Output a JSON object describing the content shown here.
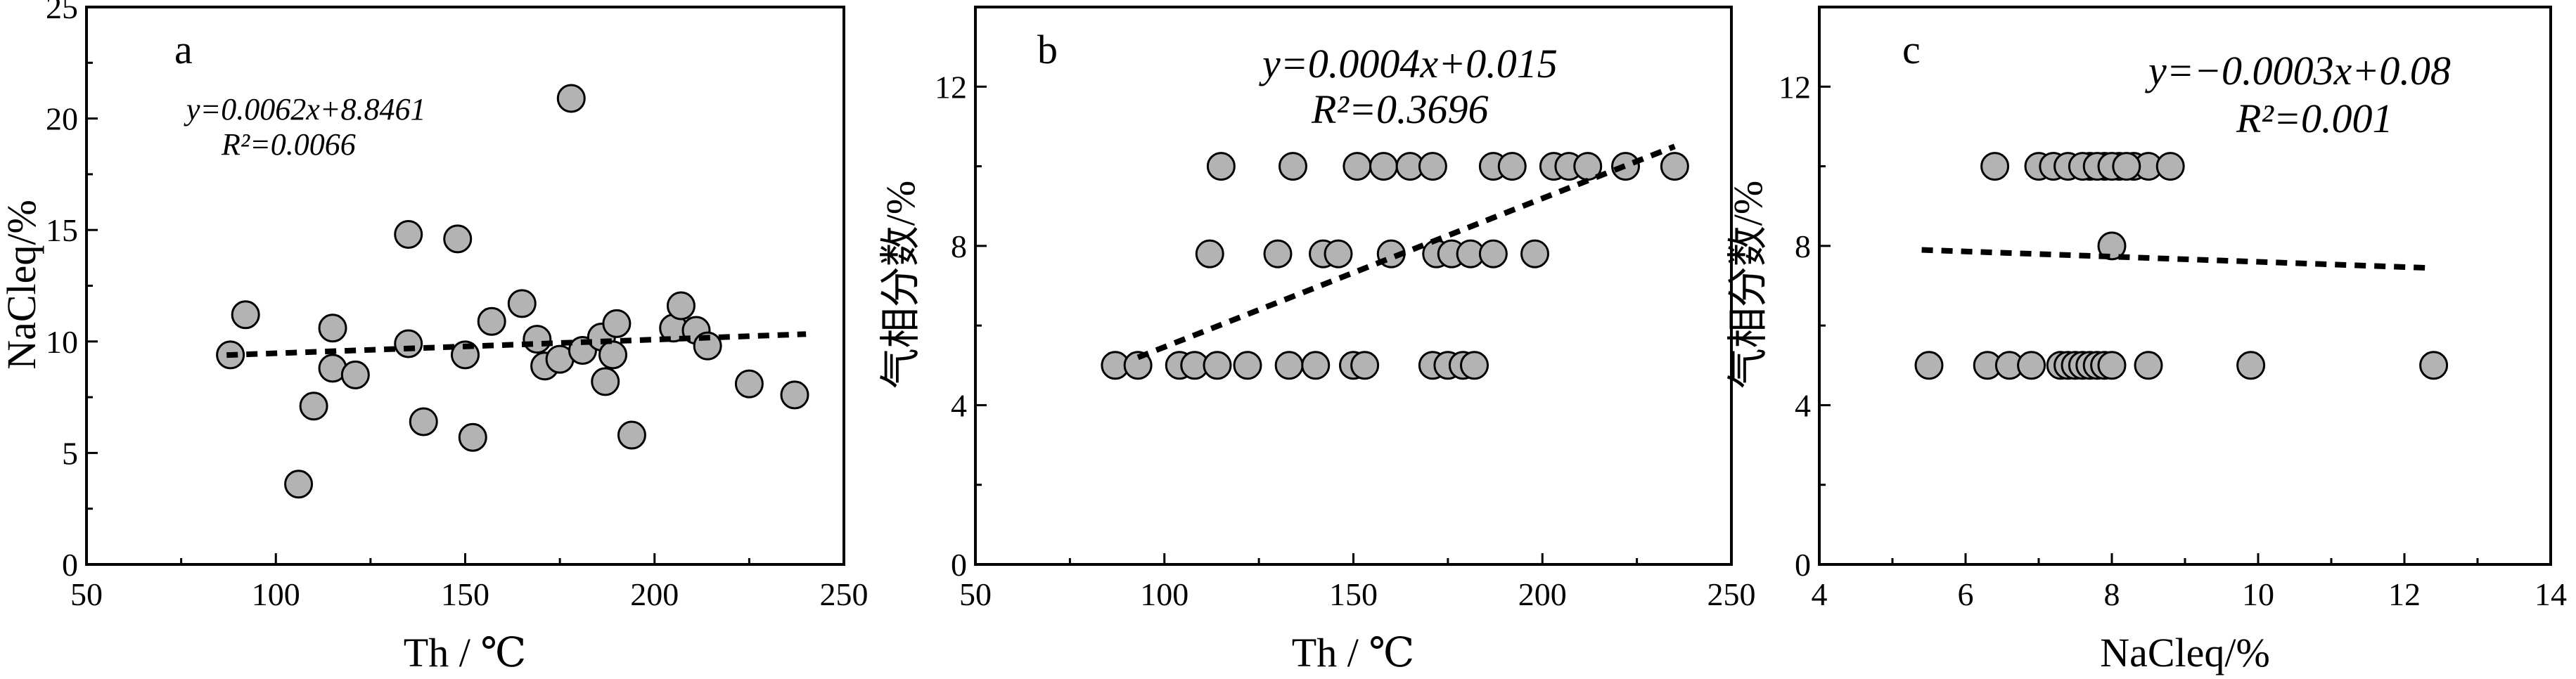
{
  "figure": {
    "panels": [
      {
        "letter": "a",
        "xlabel": "Th / ℃",
        "ylabel": "NaCleq/%",
        "equation": "y=0.0062x+8.8461",
        "r2_label": "R²=0.0066"
      },
      {
        "letter": "b",
        "xlabel": "Th / ℃",
        "ylabel": "气相分数/%",
        "equation": "y=0.0004x+0.015",
        "r2_label": "R²=0.3696"
      },
      {
        "letter": "c",
        "xlabel": "NaCleq/%",
        "ylabel": "气相分数/%",
        "equation": "y=−0.0003x+0.08",
        "r2_label": "R²=0.001"
      }
    ]
  },
  "chart_data": [
    {
      "type": "scatter",
      "title": "",
      "panel": "a",
      "xlabel": "Th / ℃",
      "ylabel": "NaCleq/%",
      "xlim": [
        50,
        250
      ],
      "ylim": [
        0,
        25
      ],
      "xticks": [
        50,
        100,
        150,
        200,
        250
      ],
      "yticks": [
        0,
        5,
        10,
        15,
        20,
        25
      ],
      "marker_color": "#b3b3b3",
      "series": [
        {
          "x": [
            88,
            92,
            106,
            110,
            115,
            115,
            121,
            135,
            135,
            139,
            148,
            150,
            152,
            157,
            165,
            169,
            171,
            175,
            178,
            181,
            186,
            187,
            189,
            190,
            194,
            205,
            207,
            211,
            214,
            225,
            237
          ],
          "y": [
            9.4,
            11.2,
            3.6,
            7.1,
            10.6,
            8.8,
            8.5,
            14.8,
            9.9,
            6.4,
            14.6,
            9.4,
            5.7,
            10.9,
            11.7,
            10.1,
            8.9,
            9.2,
            20.9,
            9.6,
            10.2,
            8.2,
            9.4,
            10.8,
            5.8,
            10.6,
            11.6,
            10.5,
            9.8,
            8.1,
            7.6
          ]
        }
      ],
      "trendline": {
        "x": [
          87,
          240
        ],
        "y": [
          9.39,
          10.33
        ]
      }
    },
    {
      "type": "scatter",
      "title": "",
      "panel": "b",
      "xlabel": "Th / ℃",
      "ylabel": "气相分数/%",
      "xlim": [
        50,
        250
      ],
      "ylim": [
        0,
        14
      ],
      "xticks": [
        50,
        100,
        150,
        200,
        250
      ],
      "yticks": [
        0,
        4,
        8,
        12
      ],
      "marker_color": "#b3b3b3",
      "series": [
        {
          "x": [
            87,
            93,
            104,
            108,
            114,
            122,
            133,
            140,
            150,
            153,
            171,
            175,
            179,
            182,
            112,
            130,
            142,
            146,
            160,
            172,
            176,
            181,
            187,
            198,
            115,
            134,
            151,
            158,
            165,
            171,
            187,
            192,
            203,
            207,
            212,
            222,
            235
          ],
          "y": [
            5,
            5,
            5,
            5,
            5,
            5,
            5,
            5,
            5,
            5,
            5,
            5,
            5,
            5,
            7.8,
            7.8,
            7.8,
            7.8,
            7.8,
            7.8,
            7.8,
            7.8,
            7.8,
            7.8,
            10,
            10,
            10,
            10,
            10,
            10,
            10,
            10,
            10,
            10,
            10,
            10,
            10
          ]
        }
      ],
      "trendline": {
        "x": [
          93,
          235
        ],
        "y": [
          5.2,
          10.5
        ]
      }
    },
    {
      "type": "scatter",
      "title": "",
      "panel": "c",
      "xlabel": "NaCleq/%",
      "ylabel": "气相分数/%",
      "xlim": [
        4,
        14
      ],
      "ylim": [
        0,
        14
      ],
      "xticks": [
        4,
        6,
        8,
        10,
        12,
        14
      ],
      "yticks": [
        0,
        4,
        8,
        12
      ],
      "marker_color": "#b3b3b3",
      "series": [
        {
          "x": [
            6.4,
            7.0,
            7.2,
            7.7,
            7.9,
            8.1,
            8.3,
            8.5,
            8.8,
            7.4,
            7.6,
            7.8,
            8.0,
            8.2,
            5.5,
            6.3,
            6.6,
            6.9,
            7.3,
            7.4,
            7.5,
            7.6,
            7.7,
            7.8,
            7.9,
            8.0,
            8.5,
            9.9,
            12.4,
            8.0
          ],
          "y": [
            10,
            10,
            10,
            10,
            10,
            10,
            10,
            10,
            10,
            10,
            10,
            10,
            10,
            10,
            5,
            5,
            5,
            5,
            5,
            5,
            5,
            5,
            5,
            5,
            5,
            5,
            5,
            5,
            5,
            8
          ]
        }
      ],
      "trendline": {
        "x": [
          5.4,
          12.3
        ],
        "y": [
          7.9,
          7.45
        ]
      }
    }
  ]
}
